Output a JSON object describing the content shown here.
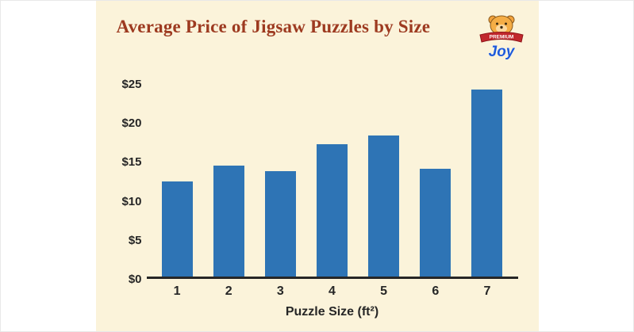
{
  "title": "Average Price of Jigsaw Puzzles by Size",
  "logo": {
    "line1": "PREMIUM",
    "line2": "Joy"
  },
  "chart_data": {
    "type": "bar",
    "title": "Average Price of Jigsaw Puzzles by Size",
    "categories": [
      "1",
      "2",
      "3",
      "4",
      "5",
      "6",
      "7"
    ],
    "values": [
      12.3,
      14.4,
      13.7,
      17.2,
      18.3,
      14.0,
      24.3
    ],
    "xlabel": "Puzzle Size (ft²)",
    "ylabel": "",
    "ylim": [
      0,
      25
    ],
    "yticks": [
      0,
      5,
      10,
      15,
      20,
      25
    ],
    "ytick_labels": [
      "$0",
      "$5",
      "$10",
      "$15",
      "$20",
      "$25"
    ],
    "grid": false,
    "legend": null,
    "bar_color": "#2e74b5",
    "background_color": "#fbf3da",
    "axis_color": "#262626",
    "title_color": "#9d3a20"
  }
}
